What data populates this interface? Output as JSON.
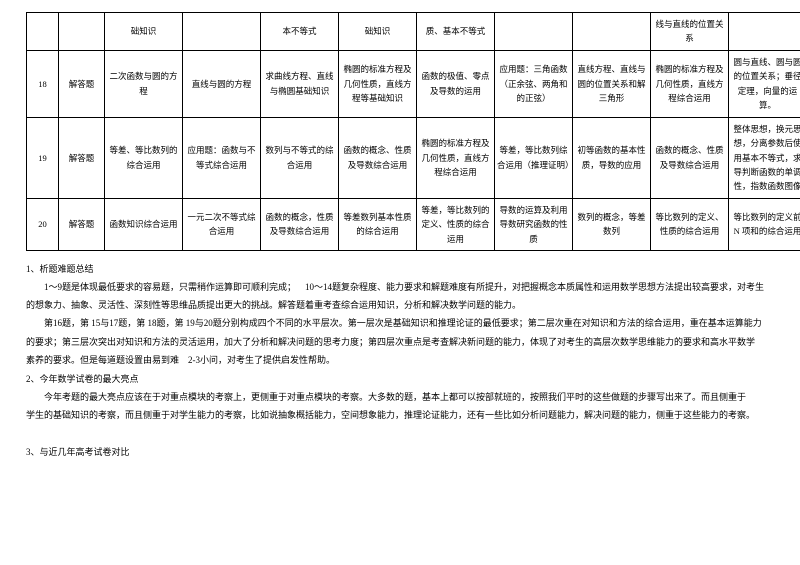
{
  "table": {
    "rows": [
      {
        "c0": "",
        "c1": "",
        "c2": "础知识",
        "c3": "",
        "c4": "本不等式",
        "c5": "础知识",
        "c6": "质、基本不等式",
        "c7": "",
        "c8": "",
        "c9": "线与直线的位置关系",
        "c10": ""
      },
      {
        "c0": "18",
        "c1": "解答题",
        "c2": "二次函数与圆的方程",
        "c3": "直线与圆的方程",
        "c4": "求曲线方程、直线与椭圆基础知识",
        "c5": "椭圆的标准方程及几何性质，直线方程等基础知识",
        "c6": "函数的极值、零点及导数的运用",
        "c7": "应用题：三角函数（正余弦、两角和的正弦）",
        "c8": "直线方程、直线与圆的位置关系和解三角形",
        "c9": "椭圆的标准方程及几何性质，直线方程综合运用",
        "c10": "圆与直线、圆与圆的位置关系；垂径定理，向量的运算。"
      },
      {
        "c0": "19",
        "c1": "解答题",
        "c2": "等差、等比数列的综合运用",
        "c3": "应用题：函数与不等式综合运用",
        "c4": "数列与不等式的综合运用",
        "c5": "函数的概念、性质及导数综合运用",
        "c6": "椭圆的标准方程及几何性质，直线方程综合运用",
        "c7": "等差，等比数列综合运用（推理证明）",
        "c8": "初等函数的基本性质，导数的应用",
        "c9": "函数的概念、性质及导数综合运用",
        "c10": "整体思想，换元思想，分离参数后使用基本不等式，求导判断函数的单调性，指数函数图像"
      },
      {
        "c0": "20",
        "c1": "解答题",
        "c2": "函数知识综合运用",
        "c3": "一元二次不等式综合运用",
        "c4": "函数的概念，性质及导数综合运用",
        "c5": "等差数列基本性质的综合运用",
        "c6": "等差，等比数列的定义、性质的综合运用",
        "c7": "导数的运算及利用导数研究函数的性质",
        "c8": "数列的概念，等差数列",
        "c9": "等比数列的定义、性质的综合运用",
        "c10": "等比数列的定义前 N 项和的综合运用"
      }
    ]
  },
  "notes": {
    "t1": "1、析题难题总结",
    "p1a": "1～9题是体现最低要求的容易题，只需稍作运算即可顺利完成；",
    "p1b": "10～14题复杂程度、能力要求和解题难度有所提升，对把握概念本质属性和运用数学思想方法提出较高要求，对考生",
    "p2": "的想象力、抽象、灵活性、深刻性等思维品质提出更大的挑战。解答题着重考查综合运用知识，分析和解决数学问题的能力。",
    "p3": "第16题，第 15与17题，第 18题，第 19与20题分别构成四个不同的水平层次。第一层次是基础知识和推理论证的最低要求；第二层次重在对知识和方法的综合运用，重在基本运算能力",
    "p4a": "的要求；第三层次突出对知识和方法的灵活运用，加大了分析和解决问题的思考力度；第四层次重点是考查解决新问题的能力，体现了对考生的高层次数学思维能力的要求和高水平数学",
    "p5a": "素养的要求。但是每道题设置由易到难",
    "p5b": "2-3小问，对考生了提供启发性帮助。",
    "t2": "2、今年数学试卷的最大亮点",
    "p6": "今年考题的最大亮点应该在于对重点模块的考察上，更侧重于对重点模块的考察。大多数的题，基本上都可以按部就班的，按照我们平时的这些做题的步骤写出来了。而且侧重于",
    "p7": "学生的基础知识的考察，而且侧重于对学生能力的考察，比如说抽象概括能力，空间想象能力，推理论证能力，还有一些比如分析问题能力，解决问题的能力，侧重于这些能力的考察。",
    "t3": "3、与近几年高考试卷对比"
  }
}
